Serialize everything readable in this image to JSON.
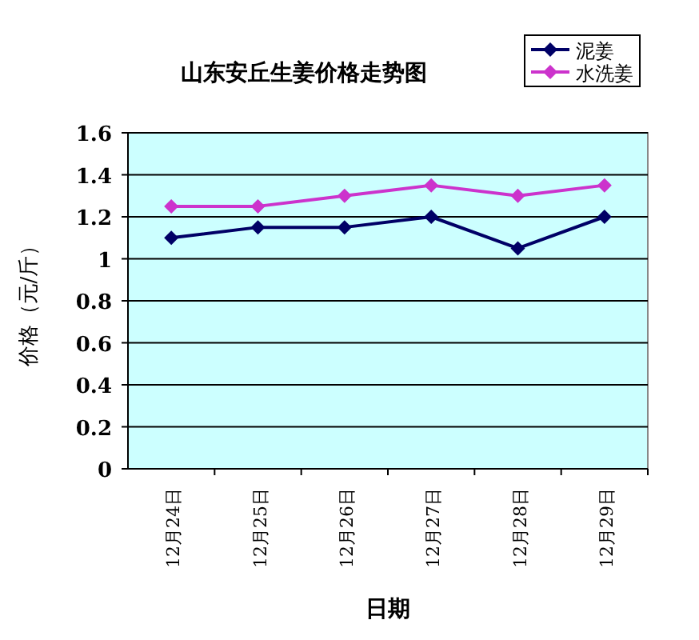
{
  "chart_data": {
    "type": "line",
    "title": "山东安丘生姜价格走势图",
    "xlabel": "日期",
    "ylabel": "价格（元/斤）",
    "categories": [
      "12月24日",
      "12月25日",
      "12月26日",
      "12月27日",
      "12月28日",
      "12月29日"
    ],
    "series": [
      {
        "name": "泥姜",
        "color": "#000066",
        "values": [
          1.1,
          1.15,
          1.15,
          1.2,
          1.05,
          1.2
        ]
      },
      {
        "name": "水洗姜",
        "color": "#cc33cc",
        "values": [
          1.25,
          1.25,
          1.3,
          1.35,
          1.3,
          1.35
        ]
      }
    ],
    "ylim": [
      0,
      1.6
    ],
    "yticks": [
      0,
      0.2,
      0.4,
      0.6,
      0.8,
      1,
      1.2,
      1.4,
      1.6
    ],
    "grid": "y",
    "legend": "top right",
    "marker": "diamond",
    "line_style": "solid"
  }
}
